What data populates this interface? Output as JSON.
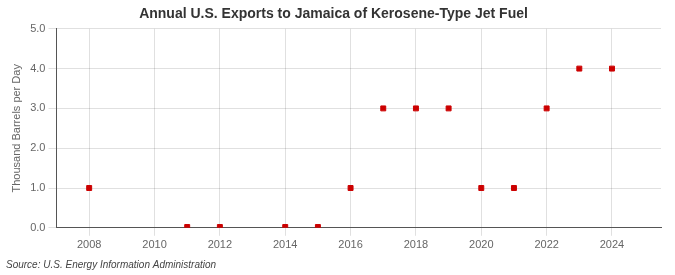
{
  "chart_data": {
    "type": "scatter",
    "title": "Annual U.S. Exports to Jamaica of Kerosene-Type Jet Fuel",
    "ylabel": "Thousand Barrels per Day",
    "annotations": [
      "Source: U.S. Energy Information Administration"
    ],
    "x": [
      2008,
      2011,
      2012,
      2014,
      2015,
      2016,
      2017,
      2018,
      2019,
      2020,
      2021,
      2022,
      2023,
      2024
    ],
    "values": [
      1.0,
      0.02,
      0.02,
      0.02,
      0.02,
      1.0,
      3.0,
      3.0,
      3.0,
      1.0,
      1.0,
      3.0,
      4.0,
      4.0
    ],
    "color": "#cc0000",
    "marker": "square",
    "xlim": [
      2007,
      2025.5
    ],
    "ylim": [
      0.0,
      5.0
    ],
    "xticks": [
      2008,
      2010,
      2012,
      2014,
      2016,
      2018,
      2020,
      2022,
      2024
    ],
    "yticks": [
      {
        "value": 0,
        "label": "0.0"
      },
      {
        "value": 1,
        "label": "1.0"
      },
      {
        "value": 2,
        "label": "2.0"
      },
      {
        "value": 3,
        "label": "3.0"
      },
      {
        "value": 4,
        "label": "4.0"
      },
      {
        "value": 5,
        "label": "5.0"
      }
    ],
    "grid": true
  }
}
